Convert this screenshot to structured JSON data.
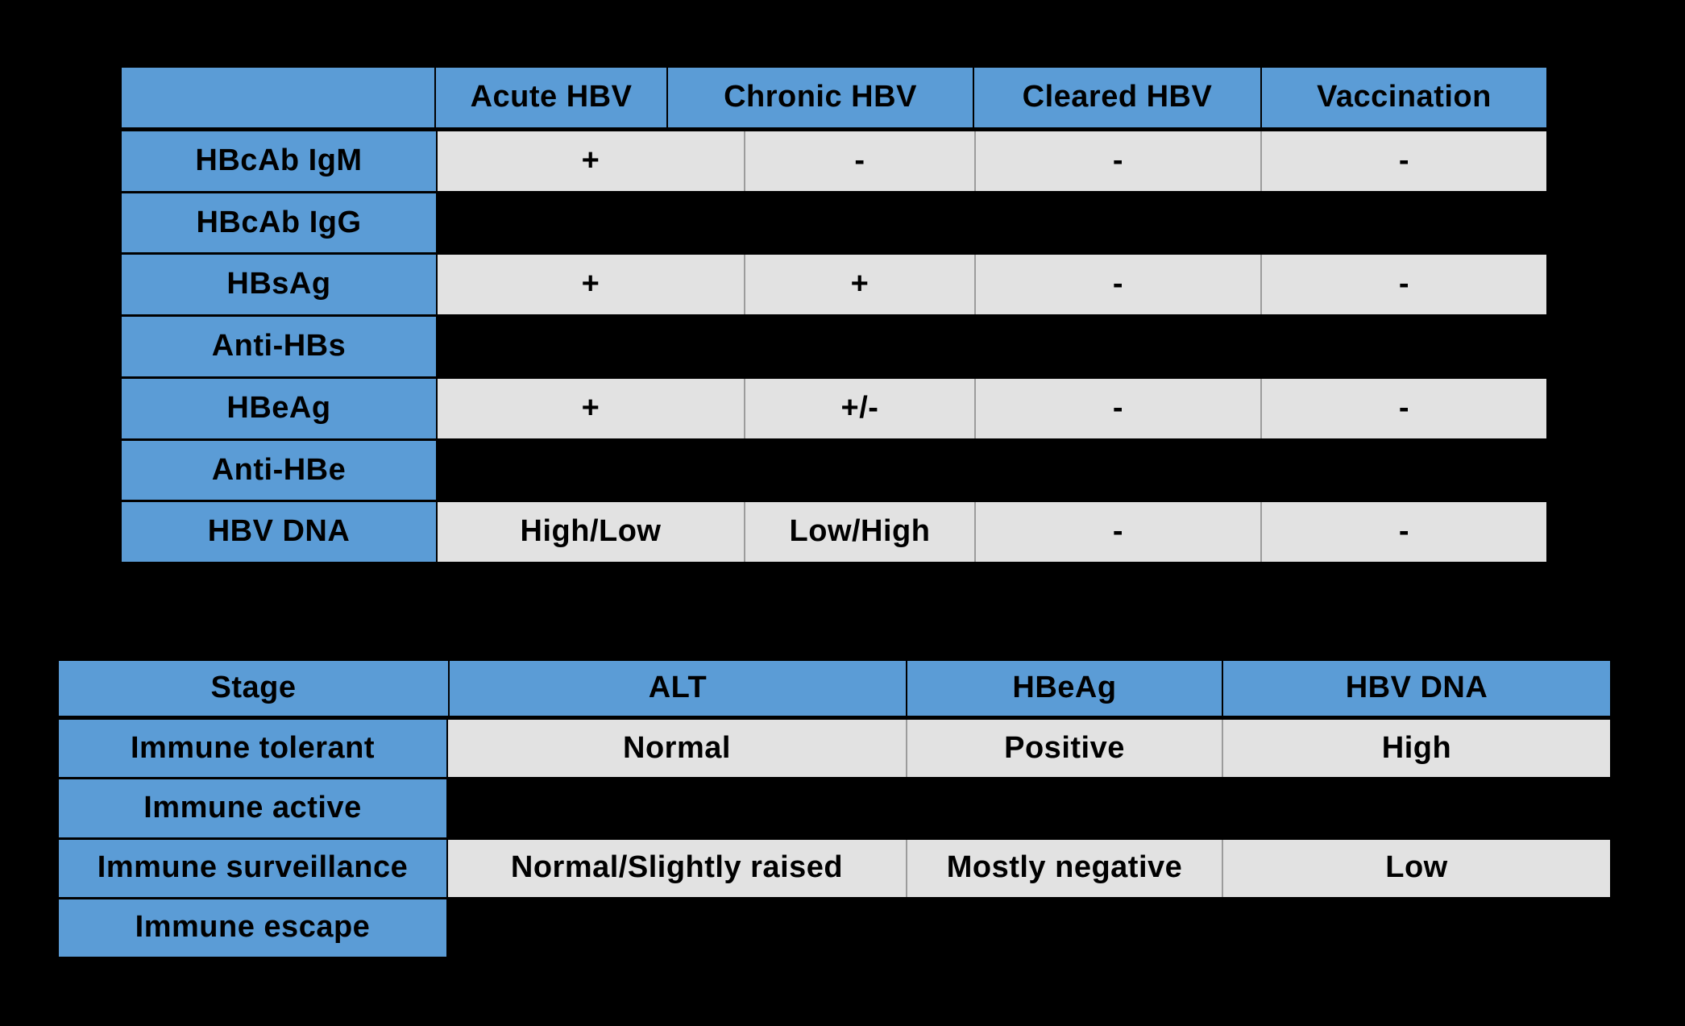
{
  "slide": {
    "background_color": "#000000",
    "colors": {
      "header_blue": "#5b9cd6",
      "cell_gray": "#e2e2e2",
      "hidden_cell_black": "#000000",
      "cell_divider_gray": "#9c9c9c",
      "text": "#000000"
    }
  },
  "serology_table": {
    "columns": [
      "",
      "Acute HBV",
      "Chronic HBV",
      "Cleared HBV",
      "Vaccination"
    ],
    "rows": [
      {
        "label": "HBcAb IgM",
        "hidden": false,
        "values": [
          "+",
          "-",
          "-",
          "-"
        ]
      },
      {
        "label": "HBcAb IgG",
        "hidden": true,
        "values": [
          "",
          "",
          "",
          ""
        ]
      },
      {
        "label": "HBsAg",
        "hidden": false,
        "values": [
          "+",
          "+",
          "-",
          "-"
        ]
      },
      {
        "label": "Anti-HBs",
        "hidden": true,
        "values": [
          "",
          "",
          "",
          ""
        ]
      },
      {
        "label": "HBeAg",
        "hidden": false,
        "values": [
          "+",
          "+/-",
          "-",
          "-"
        ]
      },
      {
        "label": "Anti-HBe",
        "hidden": true,
        "values": [
          "",
          "",
          "",
          ""
        ]
      },
      {
        "label": "HBV DNA",
        "hidden": false,
        "values": [
          "High/Low",
          "Low/High",
          "-",
          "-"
        ]
      }
    ]
  },
  "stage_table": {
    "columns": [
      "Stage",
      "ALT",
      "HBeAg",
      "HBV DNA"
    ],
    "rows": [
      {
        "label": "Immune tolerant",
        "hidden": false,
        "values": [
          "Normal",
          "Positive",
          "High"
        ]
      },
      {
        "label": "Immune active",
        "hidden": true,
        "values": [
          "",
          "",
          ""
        ]
      },
      {
        "label": "Immune surveillance",
        "hidden": false,
        "values": [
          "Normal/Slightly raised",
          "Mostly negative",
          "Low"
        ]
      },
      {
        "label": "Immune escape",
        "hidden": true,
        "values": [
          "",
          "",
          ""
        ]
      }
    ]
  },
  "chart_data": [
    {
      "type": "table",
      "columns": [
        "",
        "Acute HBV",
        "Chronic HBV",
        "Cleared HBV",
        "Vaccination"
      ],
      "rows": [
        [
          "HBcAb IgM",
          "+",
          "-",
          "-",
          "-"
        ],
        [
          "HBcAb IgG",
          "",
          "",
          "",
          ""
        ],
        [
          "HBsAg",
          "+",
          "+",
          "-",
          "-"
        ],
        [
          "Anti-HBs",
          "",
          "",
          "",
          ""
        ],
        [
          "HBeAg",
          "+",
          "+/-",
          "-",
          "-"
        ],
        [
          "Anti-HBe",
          "",
          "",
          "",
          ""
        ],
        [
          "HBV DNA",
          "High/Low",
          "Low/High",
          "-",
          "-"
        ]
      ],
      "note_hidden_rows": [
        "HBcAb IgG",
        "Anti-HBs",
        "Anti-HBe"
      ]
    },
    {
      "type": "table",
      "columns": [
        "Stage",
        "ALT",
        "HBeAg",
        "HBV DNA"
      ],
      "rows": [
        [
          "Immune tolerant",
          "Normal",
          "Positive",
          "High"
        ],
        [
          "Immune active",
          "",
          "",
          ""
        ],
        [
          "Immune surveillance",
          "Normal/Slightly raised",
          "Mostly negative",
          "Low"
        ],
        [
          "Immune escape",
          "",
          "",
          ""
        ]
      ],
      "note_hidden_rows": [
        "Immune active",
        "Immune escape"
      ]
    }
  ]
}
